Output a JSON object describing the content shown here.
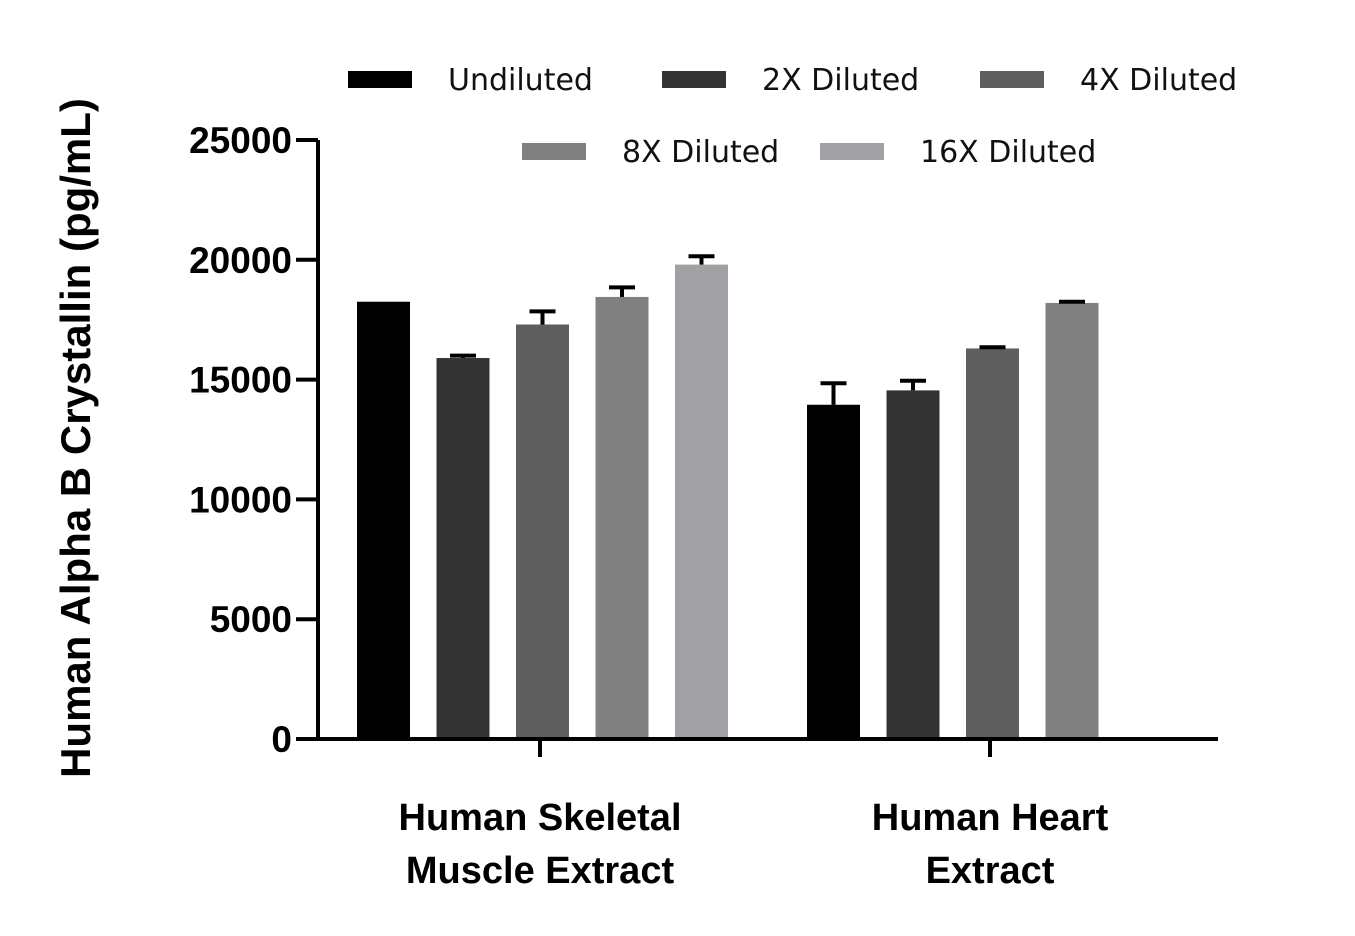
{
  "chart_data": {
    "type": "bar",
    "title": "",
    "ylabel": "Human Alpha B Crystallin (pg/mL)",
    "xlabel": "",
    "ylim": [
      0,
      25000
    ],
    "yticks": [
      0,
      5000,
      10000,
      15000,
      20000,
      25000
    ],
    "categories": [
      [
        "Human Skeletal",
        "Muscle Extract"
      ],
      [
        "Human Heart",
        "Extract"
      ]
    ],
    "series": [
      {
        "name": "Undiluted",
        "color": "#000000",
        "values": [
          18250,
          13950
        ],
        "errors": [
          0,
          900
        ]
      },
      {
        "name": "2X Diluted",
        "color": "#333333",
        "values": [
          15900,
          14550
        ],
        "errors": [
          100,
          400
        ]
      },
      {
        "name": "4X Diluted",
        "color": "#5e5e5e",
        "values": [
          17300,
          16300
        ],
        "errors": [
          550,
          50
        ]
      },
      {
        "name": "8X Diluted",
        "color": "#808080",
        "values": [
          18450,
          18200
        ],
        "errors": [
          400,
          50
        ]
      },
      {
        "name": "16X Diluted",
        "color": "#a1a1a5",
        "values": [
          19800,
          null
        ],
        "errors": [
          350,
          0
        ]
      }
    ],
    "legend": {
      "position": "top",
      "rows": [
        [
          0,
          1,
          2
        ],
        [
          3,
          4
        ]
      ]
    },
    "grid": false
  }
}
